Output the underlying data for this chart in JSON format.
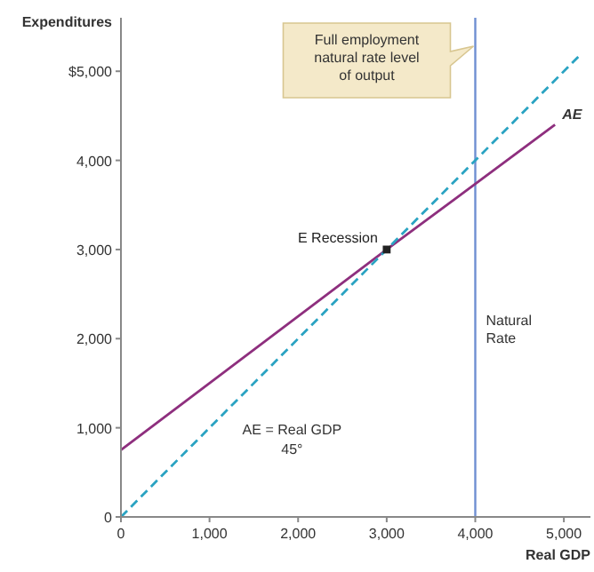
{
  "chart_data": {
    "type": "line",
    "xlabel": "Real GDP",
    "ylabel": "Expenditures",
    "xlim": [
      0,
      5300
    ],
    "ylim": [
      0,
      5600
    ],
    "xticks": [
      0,
      {
        "value": 1000,
        "label": "1,000"
      },
      {
        "value": 2000,
        "label": "2,000"
      },
      {
        "value": 3000,
        "label": "3,000"
      },
      {
        "value": 4000,
        "label": "4,000"
      },
      {
        "value": 5000,
        "label": "5,000"
      }
    ],
    "yticks": [
      0,
      {
        "value": 1000,
        "label": "1,000"
      },
      {
        "value": 2000,
        "label": "2,000"
      },
      {
        "value": 3000,
        "label": "3,000"
      },
      {
        "value": 4000,
        "label": "4,000"
      },
      {
        "value": 5000,
        "label": "$5,000"
      }
    ],
    "series": [
      {
        "name": "AE",
        "color": "#8e2f7e",
        "x": [
          0,
          3000,
          4900
        ],
        "values": [
          750,
          3000,
          4400
        ],
        "line_style": "solid"
      },
      {
        "name": "AE = Real GDP",
        "color": "#2aa3c2",
        "x": [
          0,
          3000,
          5200
        ],
        "values": [
          0,
          3000,
          5200
        ],
        "line_style": "dashed"
      },
      {
        "type": "scatter",
        "color": "#222222",
        "x": [
          3000
        ],
        "values": [
          3000
        ],
        "marker": "square"
      }
    ],
    "ref_lines": [
      {
        "axis": "x",
        "value": 4000,
        "label": "Natural Rate",
        "color": "#6f8fd2"
      }
    ],
    "annotations": [
      {
        "text": "E Recession",
        "x": 3000,
        "y": 3000
      },
      "Full employment natural rate level of output",
      "45°"
    ],
    "grid": false
  }
}
